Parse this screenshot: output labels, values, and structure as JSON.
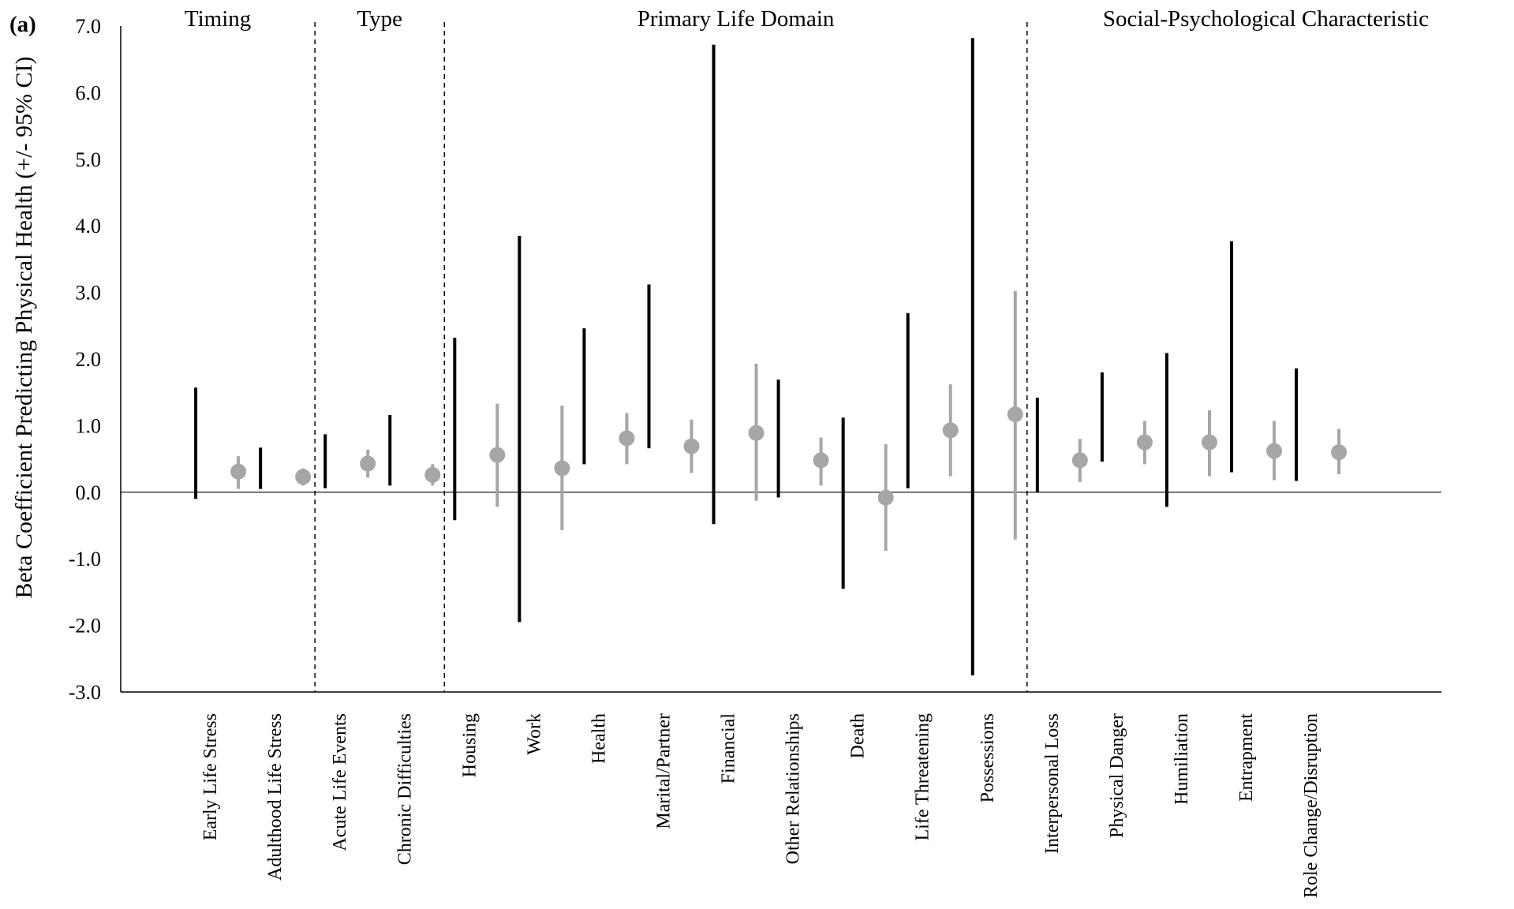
{
  "chart_data": {
    "type": "errorbar",
    "panel_label": "(a)",
    "ylabel": "Beta Coefficient Predicting Physical Health (+/- 95% CI)",
    "ylim": [
      -3.0,
      7.0
    ],
    "yticks": [
      "7.0",
      "6.0",
      "5.0",
      "4.0",
      "3.0",
      "2.0",
      "1.0",
      "0.0",
      "-1.0",
      "-2.0",
      "-3.0"
    ],
    "grid": false,
    "reference_line_y": 0,
    "colors": {
      "dark_series": "#000000",
      "light_series": "#a6a6a6"
    },
    "groups": [
      {
        "label": "Timing",
        "start": 0,
        "end": 1
      },
      {
        "label": "Type",
        "start": 2,
        "end": 3
      },
      {
        "label": "Primary Life Domain",
        "start": 4,
        "end": 12
      },
      {
        "label": "Social-Psychological Characteristic",
        "start": 13,
        "end": 17
      }
    ],
    "categories": [
      "Early Life Stress",
      "Adulthood Life Stress",
      "Acute Life Events",
      "Chronic Difficulties",
      "Housing",
      "Work",
      "Health",
      "Marital/Partner",
      "Financial",
      "Other Relationships",
      "Death",
      "Life Threatening",
      "Possessions",
      "Interpersonal Loss",
      "Physical Danger",
      "Humiliation",
      "Entrapment",
      "Role Change/Disruption"
    ],
    "series": [
      {
        "marker": "none",
        "color": "#000000",
        "lower": [
          -0.1,
          0.05,
          0.06,
          0.1,
          -0.42,
          -1.95,
          0.42,
          0.66,
          -0.48,
          -0.08,
          -1.45,
          0.06,
          -2.75,
          0.0,
          0.46,
          -0.22,
          0.3,
          0.17
        ],
        "upper": [
          1.57,
          0.67,
          0.87,
          1.16,
          2.32,
          3.85,
          2.46,
          3.12,
          6.72,
          1.69,
          1.12,
          2.69,
          6.82,
          1.42,
          1.8,
          2.09,
          3.77,
          1.86
        ]
      },
      {
        "marker": "circle",
        "color": "#a6a6a6",
        "values": [
          0.31,
          0.23,
          0.43,
          0.26,
          0.56,
          0.36,
          0.81,
          0.69,
          0.89,
          0.48,
          -0.08,
          0.93,
          1.17,
          0.48,
          0.75,
          0.75,
          0.62,
          0.6
        ],
        "lower": [
          0.05,
          0.1,
          0.22,
          0.1,
          -0.22,
          -0.57,
          0.42,
          0.29,
          -0.13,
          0.1,
          -0.88,
          0.24,
          -0.71,
          0.15,
          0.42,
          0.24,
          0.18,
          0.27
        ],
        "upper": [
          0.54,
          0.36,
          0.64,
          0.42,
          1.33,
          1.3,
          1.19,
          1.09,
          1.93,
          0.82,
          0.72,
          1.62,
          3.02,
          0.8,
          1.07,
          1.23,
          1.07,
          0.95
        ]
      }
    ]
  }
}
